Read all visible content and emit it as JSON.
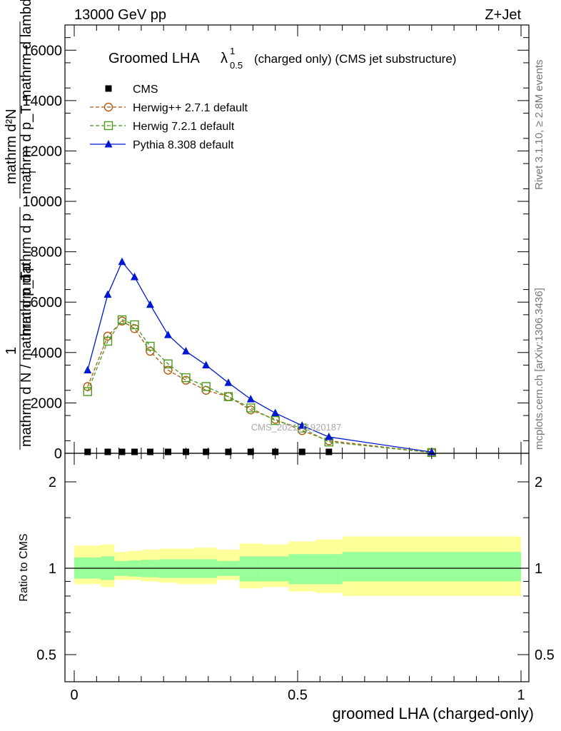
{
  "header": {
    "left": "13000 GeV pp",
    "right": "Z+Jet"
  },
  "side_labels": {
    "rivet": "Rivet 3.1.10, ≥ 2.8M events",
    "mcplots": "mcplots.cern.ch [arXiv:1306.3436]"
  },
  "watermark": "CMS_2021_I1920187",
  "chart_data": [
    {
      "type": "line",
      "title_main": "Groomed LHA",
      "title_symbol": "λ",
      "title_sup": "1",
      "title_sub": "0.5",
      "title_rest": "(charged only) (CMS jet substructure)",
      "ylabel_top_lines": [
        "mathrm d²N",
        "mathrm d p_T mathrm d lambda"
      ],
      "ylabel_bottom": "mathrm d N / mathrm d p_T",
      "ylabel_frac_one": "1",
      "ylabel_p_lines": [
        "mathrm d p",
        "mathrm d p"
      ],
      "ylabel_p_sub": "T",
      "xlim": [
        -0.02,
        1.0
      ],
      "ylim": [
        0,
        17000
      ],
      "yticks": [
        0,
        2000,
        4000,
        6000,
        8000,
        10000,
        12000,
        14000,
        16000
      ],
      "ytick_labels": [
        "0",
        "2000",
        "4000",
        "6000",
        "8000",
        "10000",
        "12000",
        "14000",
        "16000"
      ],
      "legend_position": "top-left",
      "series": [
        {
          "name": "CMS",
          "marker": "square-filled",
          "color": "#000000",
          "x": [
            0.03,
            0.075,
            0.107,
            0.135,
            0.17,
            0.21,
            0.25,
            0.295,
            0.345,
            0.395,
            0.45,
            0.51,
            0.57
          ],
          "y": [
            20,
            20,
            20,
            20,
            20,
            20,
            20,
            20,
            20,
            20,
            20,
            20,
            20
          ]
        },
        {
          "name": "Herwig++ 2.7.1 default",
          "marker": "circle-open",
          "color": "#b05a10",
          "dash": "5,3",
          "x": [
            0.03,
            0.075,
            0.107,
            0.135,
            0.17,
            0.21,
            0.25,
            0.295,
            0.345,
            0.395,
            0.45,
            0.51,
            0.57,
            0.8
          ],
          "y": [
            2650,
            4650,
            5250,
            4950,
            4050,
            3300,
            2900,
            2500,
            2250,
            1720,
            1350,
            900,
            500,
            30
          ]
        },
        {
          "name": "Herwig 7.2.1 default",
          "marker": "square-open",
          "color": "#4a9a1c",
          "dash": "5,3",
          "x": [
            0.03,
            0.075,
            0.107,
            0.135,
            0.17,
            0.21,
            0.25,
            0.295,
            0.345,
            0.395,
            0.45,
            0.51,
            0.57,
            0.8
          ],
          "y": [
            2450,
            4450,
            5300,
            5100,
            4250,
            3550,
            3000,
            2650,
            2250,
            1800,
            1300,
            1000,
            450,
            30
          ]
        },
        {
          "name": "Pythia 8.308 default",
          "marker": "triangle-filled",
          "color": "#0018d0",
          "x": [
            0.03,
            0.075,
            0.107,
            0.135,
            0.17,
            0.21,
            0.25,
            0.295,
            0.345,
            0.395,
            0.45,
            0.51,
            0.57,
            0.8
          ],
          "y": [
            3300,
            6300,
            7600,
            7000,
            5900,
            4700,
            4050,
            3500,
            2800,
            2150,
            1600,
            1100,
            650,
            50
          ]
        }
      ]
    },
    {
      "type": "area",
      "ylabel": "Ratio to CMS",
      "xlabel": "groomed LHA (charged-only)",
      "ylim": [
        0.4,
        2.4
      ],
      "log_scale": true,
      "yticks": [
        0.5,
        1,
        2
      ],
      "ytick_labels": [
        "0.5",
        "1",
        "2"
      ],
      "xticks": [
        0,
        0.5,
        1
      ],
      "xtick_labels": [
        "0",
        "0.5",
        "1"
      ],
      "reference_line": 1,
      "bands": {
        "edges": [
          0.0,
          0.06,
          0.09,
          0.12,
          0.15,
          0.19,
          0.23,
          0.27,
          0.32,
          0.37,
          0.42,
          0.48,
          0.54,
          0.6,
          1.0
        ],
        "inner": [
          [
            0.92,
            1.09
          ],
          [
            0.91,
            1.1
          ],
          [
            0.94,
            1.06
          ],
          [
            0.935,
            1.065
          ],
          [
            0.93,
            1.07
          ],
          [
            0.925,
            1.075
          ],
          [
            0.925,
            1.075
          ],
          [
            0.925,
            1.075
          ],
          [
            0.94,
            1.06
          ],
          [
            0.9,
            1.1
          ],
          [
            0.9,
            1.1
          ],
          [
            0.88,
            1.12
          ],
          [
            0.88,
            1.12
          ],
          [
            0.9,
            1.14
          ]
        ],
        "outer": [
          [
            0.88,
            1.2
          ],
          [
            0.86,
            1.21
          ],
          [
            0.91,
            1.14
          ],
          [
            0.91,
            1.15
          ],
          [
            0.9,
            1.16
          ],
          [
            0.89,
            1.17
          ],
          [
            0.88,
            1.17
          ],
          [
            0.88,
            1.18
          ],
          [
            0.91,
            1.16
          ],
          [
            0.85,
            1.22
          ],
          [
            0.86,
            1.21
          ],
          [
            0.83,
            1.24
          ],
          [
            0.82,
            1.26
          ],
          [
            0.8,
            1.29
          ]
        ]
      },
      "band_colors": {
        "inner": "#99ff99",
        "outer": "#ffff99"
      }
    }
  ]
}
